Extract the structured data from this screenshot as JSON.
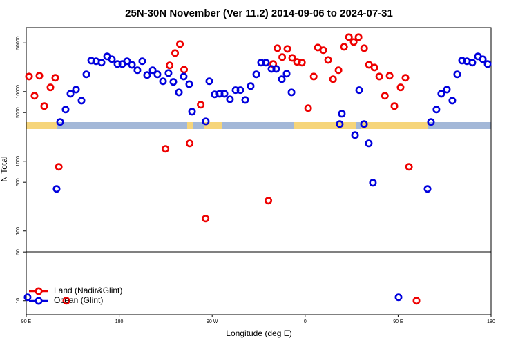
{
  "chart_data": {
    "type": "scatter",
    "title": "25N-30N November (Ver 11.2)   2014-09-06 to 2024-07-31",
    "x_label": "Longitude (deg E)",
    "y_label": "N Total",
    "log_y": true,
    "legend": "lower left",
    "xlim": [
      90,
      540
    ],
    "ylim": [
      6.3,
      83000
    ],
    "xticks": [
      {
        "value": 90,
        "label": "90 E"
      },
      180,
      {
        "value": 270,
        "label": "90 W"
      },
      {
        "value": 360,
        "label": "0"
      },
      {
        "value": 450,
        "label": "90 E"
      },
      {
        "value": 540,
        "label": "180"
      }
    ],
    "yticks": [
      10,
      50,
      100,
      500,
      1000,
      5000,
      10000,
      50000
    ],
    "series": [
      {
        "name": "Land (Nadir&Glint)",
        "color": "#ee0000",
        "x": [
          92.7,
          98.0,
          102.7,
          107.4,
          113.4,
          118.1,
          121.5,
          128.8,
          224.8,
          228.8,
          234.1,
          238.8,
          242.8,
          248.2,
          258.9,
          263.6,
          324.4,
          329.1,
          333.1,
          337.8,
          342.8,
          347.5,
          352.2,
          356.9,
          362.9,
          368.3,
          372.3,
          377.6,
          382.3,
          387.0,
          392.3,
          397.7,
          402.4,
          407.0,
          411.7,
          417.1,
          421.8,
          427.1,
          431.8,
          437.2,
          441.8,
          446.4,
          452.4,
          457.1,
          460.5,
          467.8
        ],
        "values": [
          16500,
          8730,
          16900,
          6200,
          11500,
          15800,
          834,
          10,
          1510,
          23800,
          35800,
          48200,
          20700,
          1810,
          6490,
          151,
          273,
          24900,
          42000,
          31300,
          41100,
          30500,
          26700,
          26100,
          5790,
          16500,
          43000,
          39300,
          28500,
          15100,
          20300,
          44000,
          60500,
          51600,
          60500,
          42000,
          24300,
          22200,
          16500,
          8730,
          16900,
          6200,
          11500,
          15800,
          834,
          10
        ]
      },
      {
        "name": "Ocean (Glint)",
        "color": "#0000dd",
        "x": [
          91.3,
          119.4,
          122.8,
          128.1,
          132.8,
          138.2,
          143.5,
          148.2,
          152.9,
          157.6,
          162.9,
          168.3,
          172.9,
          178.3,
          183.0,
          187.6,
          192.3,
          197.6,
          202.3,
          207.0,
          212.4,
          217.0,
          222.4,
          227.7,
          232.4,
          237.8,
          242.4,
          247.8,
          250.5,
          263.8,
          267.2,
          272.5,
          277.2,
          281.9,
          287.2,
          292.6,
          297.3,
          302.0,
          307.3,
          312.7,
          317.3,
          322.0,
          327.4,
          332.0,
          337.4,
          342.1,
          346.8,
          393.5,
          395.5,
          408.3,
          412.3,
          417.0,
          421.6,
          425.6,
          450.4,
          478.5,
          481.8,
          487.1,
          491.8,
          497.2,
          502.5,
          507.2,
          511.9,
          516.6,
          521.9,
          527.3,
          532.0,
          536.7
        ],
        "values": [
          11.2,
          402,
          3670,
          5530,
          9330,
          10700,
          7430,
          17700,
          27900,
          27300,
          26100,
          32000,
          29200,
          24900,
          24900,
          27300,
          24300,
          20300,
          27300,
          17300,
          20300,
          17700,
          14100,
          18500,
          13800,
          9770,
          16500,
          12800,
          5160,
          3750,
          14100,
          9130,
          9330,
          9330,
          7780,
          10500,
          10500,
          7600,
          12000,
          17700,
          26100,
          26100,
          21200,
          21200,
          15100,
          18100,
          9770,
          3430,
          4820,
          2380,
          10500,
          3430,
          1810,
          493,
          11.2,
          402,
          3670,
          5530,
          9330,
          10700,
          7430,
          17700,
          27900,
          27300,
          26100,
          32000,
          29200,
          24900
        ]
      }
    ]
  }
}
